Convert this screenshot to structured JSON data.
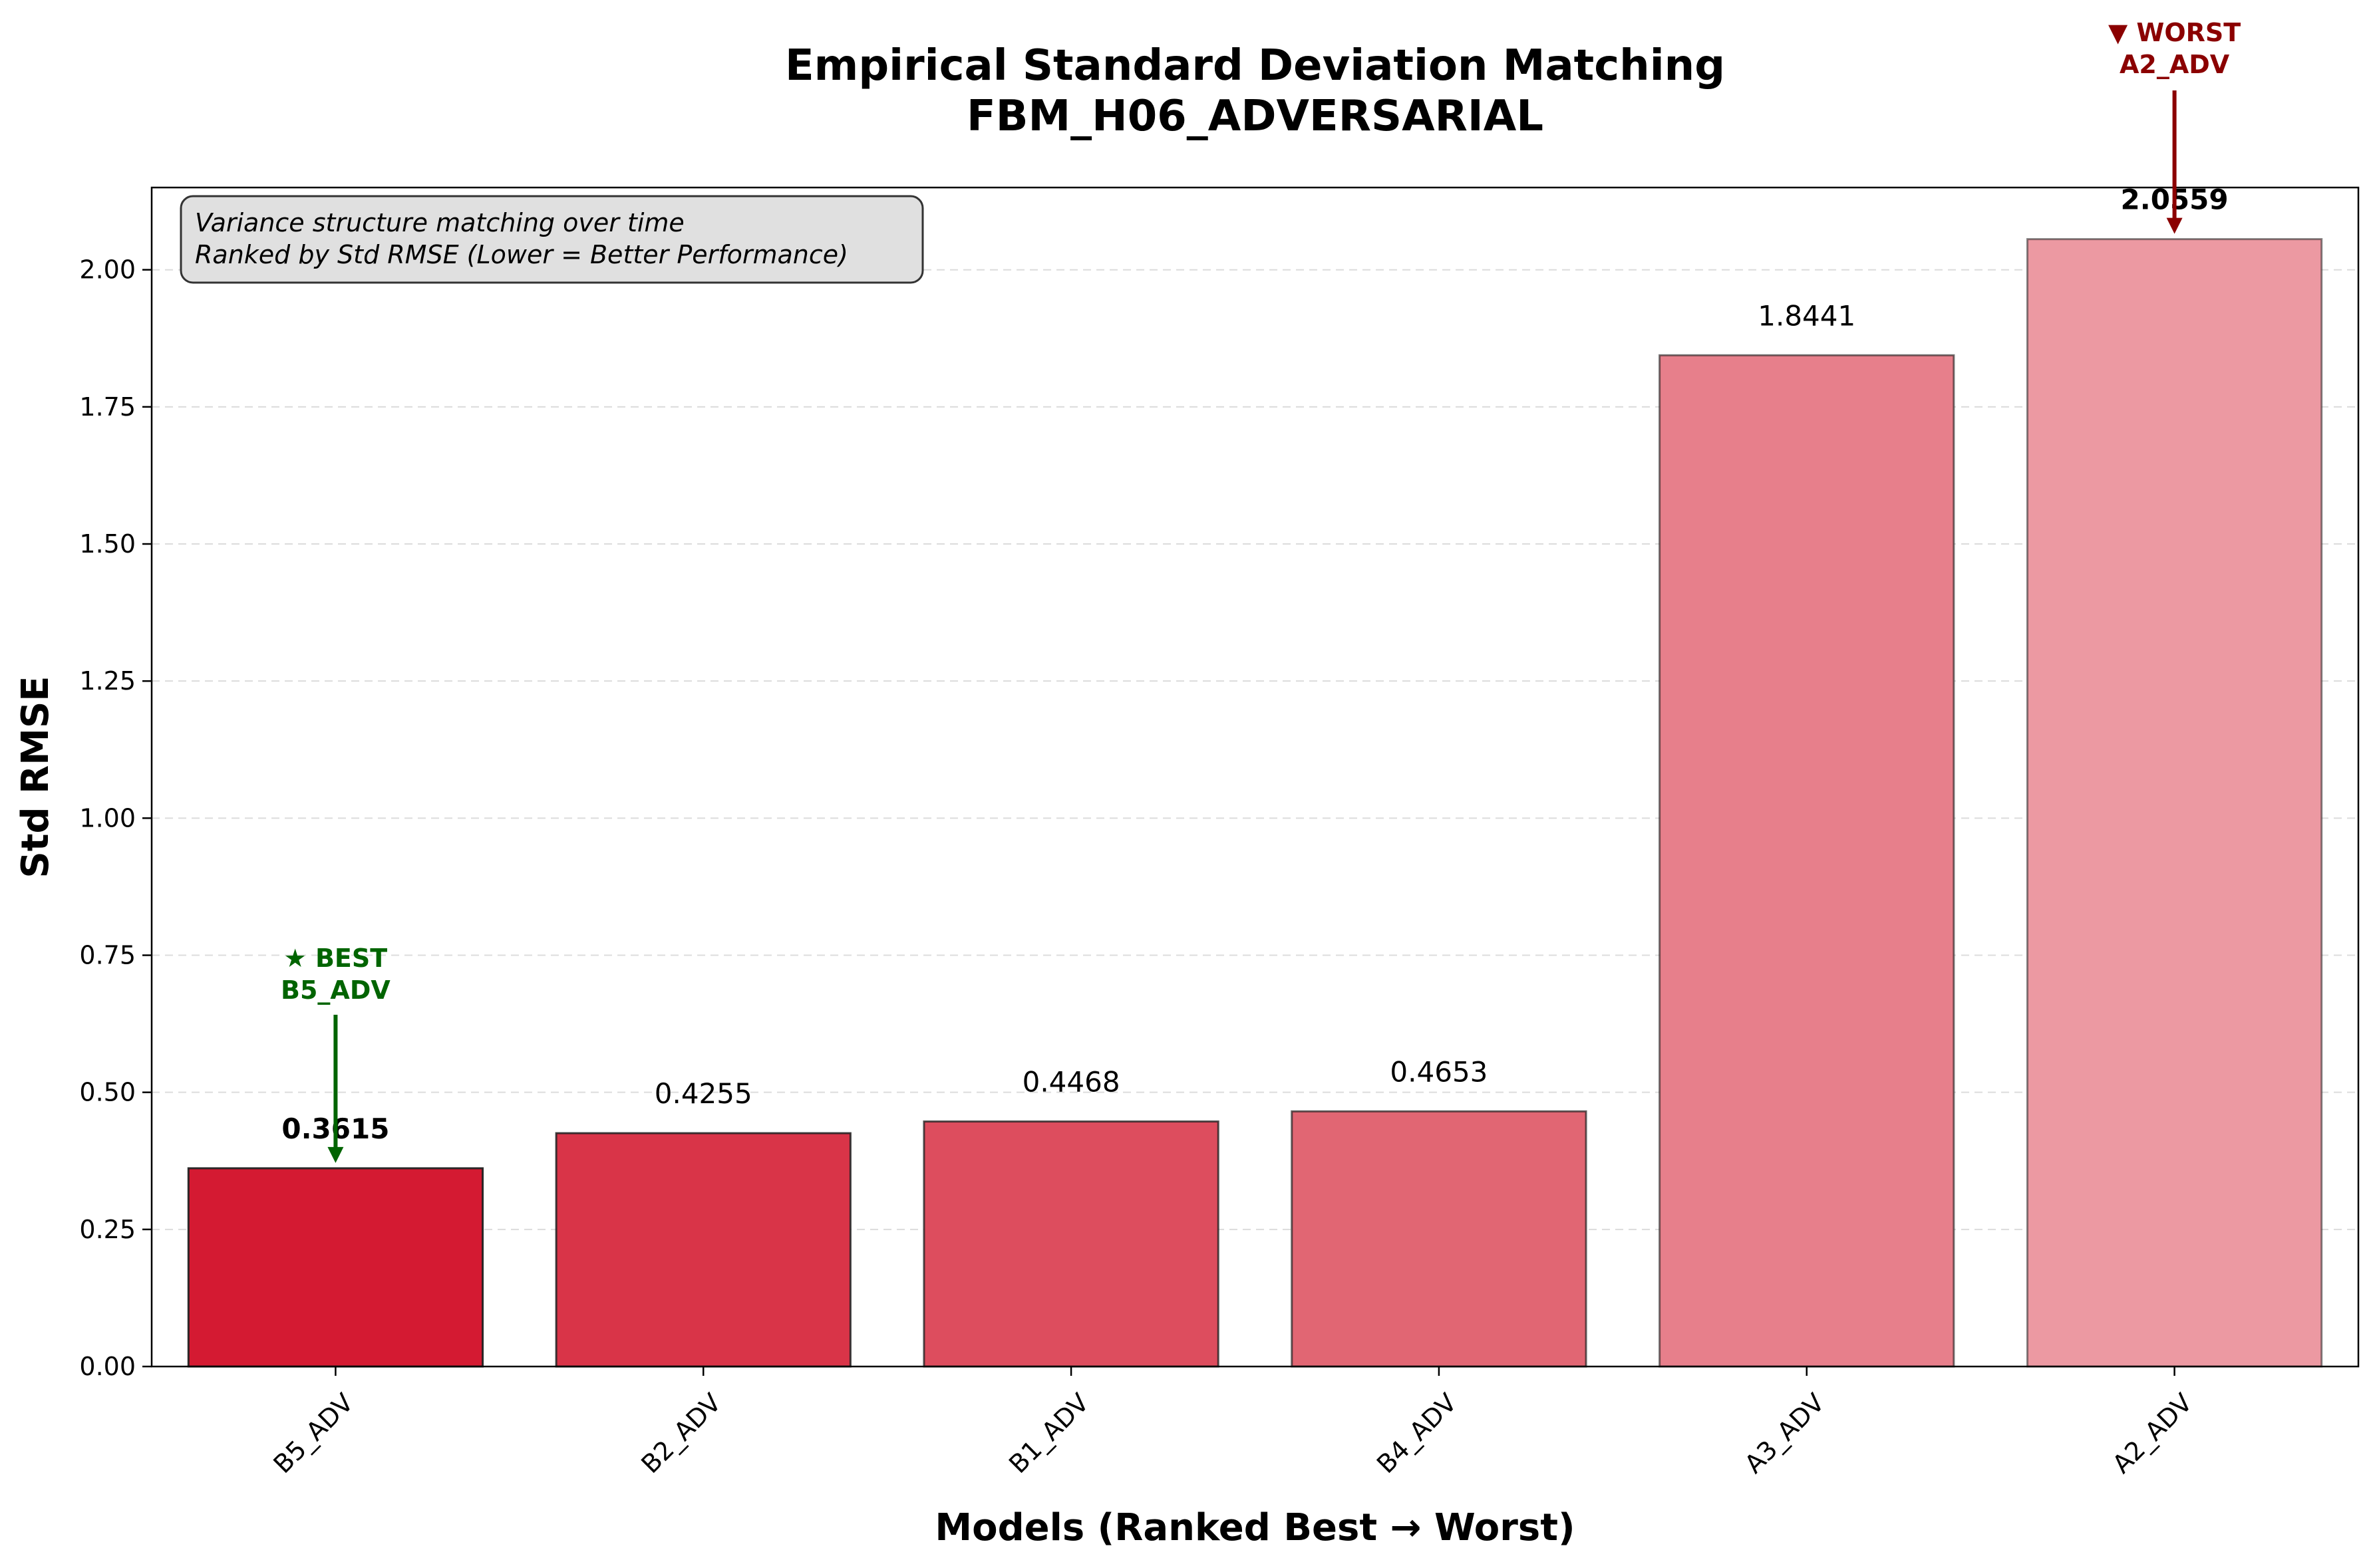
{
  "chart_data": {
    "type": "bar",
    "title": "Empirical Standard Deviation Matching",
    "subtitle": "FBM_H06_ADVERSARIAL",
    "xlabel": "Models (Ranked Best → Worst)",
    "ylabel": "Std RMSE",
    "categories": [
      "B5_ADV",
      "B2_ADV",
      "B1_ADV",
      "B4_ADV",
      "A3_ADV",
      "A2_ADV"
    ],
    "values": [
      0.3615,
      0.4255,
      0.4468,
      0.4653,
      1.8441,
      2.0559
    ],
    "value_labels": [
      "0.3615",
      "0.4255",
      "0.4468",
      "0.4653",
      "1.8441",
      "2.0559"
    ],
    "bar_colors": [
      "#d41a32",
      "#d93448",
      "#dd4d5e",
      "#e16673",
      "#e77f8b",
      "#ec99a2"
    ],
    "ylim": [
      0,
      2.15
    ],
    "yticks": [
      0.0,
      0.25,
      0.5,
      0.75,
      1.0,
      1.25,
      1.5,
      1.75,
      2.0
    ],
    "ytick_labels": [
      "0.00",
      "0.25",
      "0.50",
      "0.75",
      "1.00",
      "1.25",
      "1.50",
      "1.75",
      "2.00"
    ],
    "grid": "y-dashed",
    "info_box": {
      "line1": "Variance structure matching over time",
      "line2": "Ranked by Std RMSE (Lower = Better Performance)",
      "placement": "top-left"
    },
    "best": {
      "index": 0,
      "line1": "★ BEST",
      "line2": "B5_ADV",
      "color": "#006400"
    },
    "worst": {
      "index": 5,
      "line1": "▼ WORST",
      "line2": "A2_ADV",
      "color": "#8b0000"
    }
  }
}
